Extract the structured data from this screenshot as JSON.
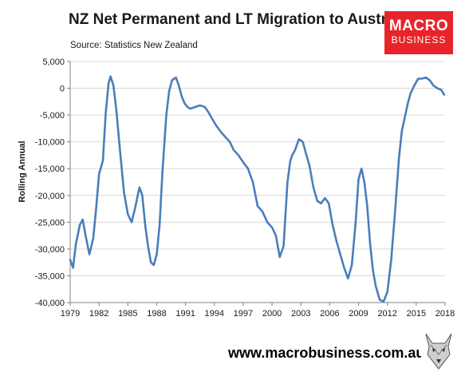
{
  "header": {
    "title": "NZ Net Permanent and LT Migration to Australia",
    "subtitle": "Source: Statistics New Zealand"
  },
  "logo": {
    "line1": "MACRO",
    "line2": "BUSINESS",
    "color": "#e8242a"
  },
  "footer": {
    "url": "www.macrobusiness.com.au"
  },
  "chart_data": {
    "type": "line",
    "title": "NZ Net Permanent and LT Migration to Australia",
    "ylabel": "Rolling Annual",
    "xlabel": "",
    "xlim": [
      1979,
      2018
    ],
    "ylim": [
      -40000,
      5000
    ],
    "grid": "horizontal",
    "line_color": "#4a7ebb",
    "x_ticks": [
      1979,
      1982,
      1985,
      1988,
      1991,
      1994,
      1997,
      2000,
      2003,
      2006,
      2009,
      2012,
      2015,
      2018
    ],
    "y_ticks": [
      5000,
      0,
      -5000,
      -10000,
      -15000,
      -20000,
      -25000,
      -30000,
      -35000,
      -40000
    ],
    "y_tick_labels": [
      "5,000",
      "0",
      "-5,000",
      "-10,000",
      "-15,000",
      "-20,000",
      "-25,000",
      "-30,000",
      "-35,000",
      "-40,000"
    ],
    "series": [
      {
        "x": [
          1979.0,
          1979.3,
          1979.6,
          1980.0,
          1980.3,
          1980.6,
          1981.0,
          1981.4,
          1981.7,
          1982.0,
          1982.4,
          1982.7,
          1983.0,
          1983.2,
          1983.5,
          1983.8,
          1984.2,
          1984.6,
          1985.0,
          1985.4,
          1985.8,
          1986.2,
          1986.5,
          1986.8,
          1987.1,
          1987.4,
          1987.7,
          1988.0,
          1988.3,
          1988.6,
          1989.0,
          1989.3,
          1989.6,
          1990.0,
          1990.3,
          1990.6,
          1990.9,
          1991.2,
          1991.5,
          1992.0,
          1992.5,
          1993.0,
          1993.4,
          1993.8,
          1994.2,
          1994.7,
          1995.1,
          1995.6,
          1996.0,
          1996.5,
          1997.0,
          1997.5,
          1998.0,
          1998.5,
          1999.0,
          1999.5,
          2000.0,
          2000.4,
          2000.8,
          2001.2,
          2001.6,
          2001.9,
          2002.1,
          2002.4,
          2002.8,
          2003.2,
          2003.5,
          2003.9,
          2004.3,
          2004.7,
          2005.1,
          2005.5,
          2005.9,
          2006.3,
          2006.7,
          2007.1,
          2007.5,
          2007.9,
          2008.3,
          2008.7,
          2009.0,
          2009.3,
          2009.6,
          2009.9,
          2010.2,
          2010.5,
          2010.8,
          2011.2,
          2011.6,
          2012.0,
          2012.4,
          2012.8,
          2013.2,
          2013.5,
          2013.8,
          2014.1,
          2014.4,
          2014.8,
          2015.2,
          2015.6,
          2016.0,
          2016.4,
          2016.8,
          2017.2,
          2017.6,
          2017.9
        ],
        "y": [
          -32000,
          -33500,
          -29000,
          -25500,
          -24500,
          -27500,
          -31000,
          -28000,
          -22500,
          -16000,
          -13500,
          -4500,
          1000,
          2200,
          500,
          -4000,
          -12000,
          -19500,
          -23500,
          -25000,
          -22000,
          -18500,
          -20000,
          -25500,
          -29500,
          -32500,
          -33000,
          -31000,
          -25500,
          -15500,
          -5000,
          -500,
          1500,
          2000,
          500,
          -1500,
          -2800,
          -3500,
          -3800,
          -3500,
          -3200,
          -3500,
          -4500,
          -5800,
          -7000,
          -8200,
          -9000,
          -10000,
          -11500,
          -12500,
          -13800,
          -15000,
          -17500,
          -22000,
          -23000,
          -25000,
          -26000,
          -27500,
          -31500,
          -29500,
          -17500,
          -13500,
          -12500,
          -11500,
          -9500,
          -10000,
          -12000,
          -14500,
          -18500,
          -21000,
          -21500,
          -20500,
          -21500,
          -25500,
          -28500,
          -31000,
          -33500,
          -35500,
          -33000,
          -25000,
          -17000,
          -15000,
          -17500,
          -22000,
          -29000,
          -34000,
          -37000,
          -39500,
          -39800,
          -38000,
          -32000,
          -23000,
          -13000,
          -8000,
          -5500,
          -3000,
          -1000,
          500,
          1800,
          1800,
          2000,
          1500,
          500,
          0,
          -300,
          -1200
        ]
      }
    ]
  }
}
